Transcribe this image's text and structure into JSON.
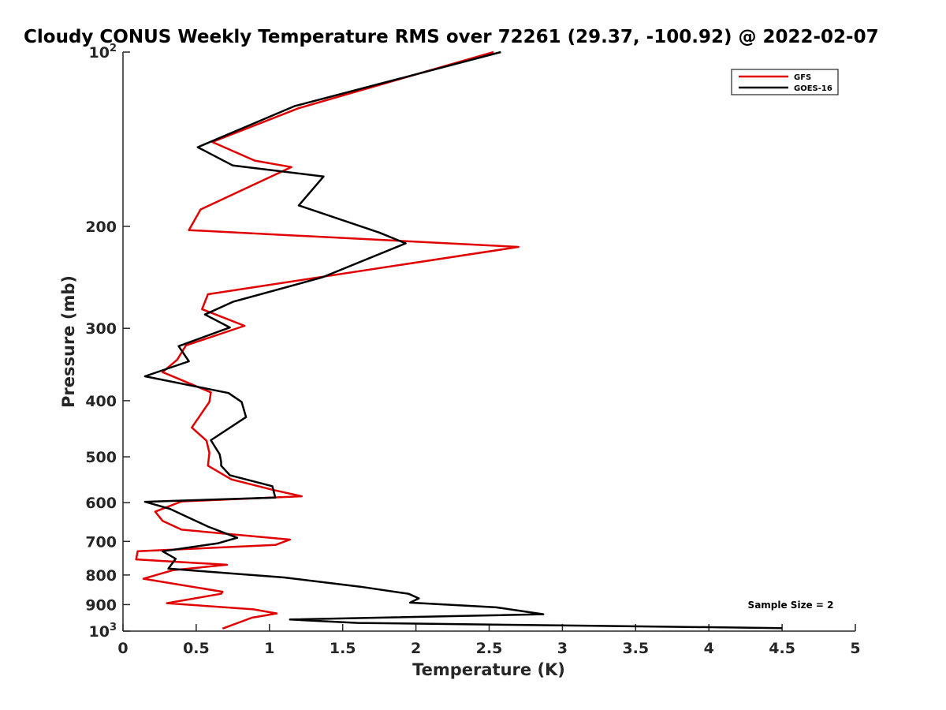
{
  "chart_data": {
    "type": "line",
    "title": "Cloudy CONUS Weekly Temperature RMS over 72261 (29.37, -100.92) @ 2022-02-07",
    "xlabel": "Temperature (K)",
    "ylabel": "Pressure (mb)",
    "xlim": [
      0,
      5
    ],
    "ylim": [
      100,
      1000
    ],
    "yscale": "log",
    "yreversed": true,
    "x_ticks": [
      "0",
      "0.5",
      "1",
      "1.5",
      "2",
      "2.5",
      "3",
      "3.5",
      "4",
      "4.5",
      "5"
    ],
    "y_ticks": [
      {
        "value": 100,
        "base": "10",
        "exp": "2"
      },
      {
        "value": 200,
        "label": "200"
      },
      {
        "value": 300,
        "label": "300"
      },
      {
        "value": 400,
        "label": "400"
      },
      {
        "value": 500,
        "label": "500"
      },
      {
        "value": 600,
        "label": "600"
      },
      {
        "value": 700,
        "label": "700"
      },
      {
        "value": 800,
        "label": "800"
      },
      {
        "value": 900,
        "label": "900"
      },
      {
        "value": 1000,
        "base": "10",
        "exp": "3"
      }
    ],
    "legend_position": "top-right",
    "annotation": "Sample Size = 2",
    "series": [
      {
        "name": "GFS",
        "color": "#e00000",
        "points": [
          [
            2.53,
            100
          ],
          [
            1.2,
            125
          ],
          [
            0.61,
            143
          ],
          [
            0.9,
            154
          ],
          [
            1.15,
            158
          ],
          [
            0.53,
            187
          ],
          [
            0.45,
            203
          ],
          [
            2.7,
            217
          ],
          [
            0.58,
            262
          ],
          [
            0.54,
            278
          ],
          [
            0.83,
            297
          ],
          [
            0.43,
            321
          ],
          [
            0.37,
            340
          ],
          [
            0.27,
            357
          ],
          [
            0.6,
            387
          ],
          [
            0.59,
            402
          ],
          [
            0.47,
            445
          ],
          [
            0.57,
            469
          ],
          [
            0.59,
            492
          ],
          [
            0.58,
            518
          ],
          [
            0.74,
            547
          ],
          [
            1.02,
            570
          ],
          [
            1.22,
            585
          ],
          [
            0.4,
            597
          ],
          [
            0.22,
            622
          ],
          [
            0.27,
            645
          ],
          [
            0.4,
            668
          ],
          [
            1.14,
            695
          ],
          [
            1.04,
            710
          ],
          [
            0.1,
            728
          ],
          [
            0.09,
            752
          ],
          [
            0.71,
            768
          ],
          [
            0.34,
            785
          ],
          [
            0.14,
            812
          ],
          [
            0.68,
            855
          ],
          [
            0.67,
            862
          ],
          [
            0.3,
            895
          ],
          [
            0.89,
            917
          ],
          [
            1.05,
            932
          ],
          [
            0.88,
            948
          ],
          [
            0.68,
            990
          ]
        ]
      },
      {
        "name": "GOES-16",
        "color": "#000000",
        "points": [
          [
            2.58,
            100
          ],
          [
            1.17,
            124
          ],
          [
            0.51,
            146
          ],
          [
            0.75,
            157
          ],
          [
            1.37,
            164
          ],
          [
            1.2,
            184
          ],
          [
            1.75,
            205
          ],
          [
            1.93,
            214
          ],
          [
            1.36,
            245
          ],
          [
            0.75,
            270
          ],
          [
            0.56,
            284
          ],
          [
            0.73,
            299
          ],
          [
            0.38,
            322
          ],
          [
            0.45,
            342
          ],
          [
            0.15,
            363
          ],
          [
            0.72,
            388
          ],
          [
            0.81,
            402
          ],
          [
            0.84,
            427
          ],
          [
            0.6,
            468
          ],
          [
            0.66,
            495
          ],
          [
            0.67,
            510
          ],
          [
            0.67,
            518
          ],
          [
            0.73,
            538
          ],
          [
            1.02,
            562
          ],
          [
            1.04,
            588
          ],
          [
            0.15,
            598
          ],
          [
            0.32,
            615
          ],
          [
            0.45,
            637
          ],
          [
            0.58,
            660
          ],
          [
            0.78,
            690
          ],
          [
            0.65,
            705
          ],
          [
            0.27,
            728
          ],
          [
            0.36,
            750
          ],
          [
            0.31,
            780
          ],
          [
            1.1,
            808
          ],
          [
            1.62,
            838
          ],
          [
            1.95,
            862
          ],
          [
            2.02,
            878
          ],
          [
            1.96,
            893
          ],
          [
            2.55,
            910
          ],
          [
            2.87,
            935
          ],
          [
            1.14,
            955
          ],
          [
            1.6,
            968
          ],
          [
            4.5,
            988
          ]
        ]
      }
    ]
  }
}
